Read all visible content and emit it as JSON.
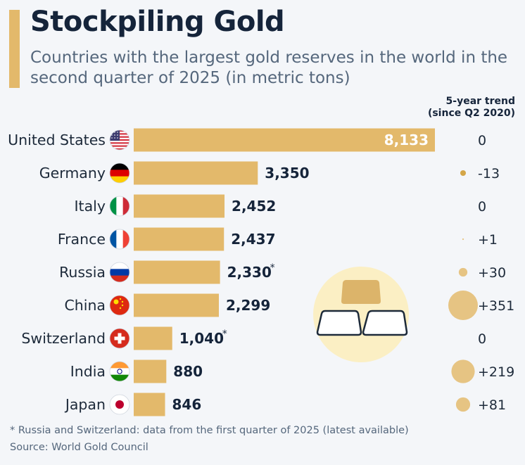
{
  "header": {
    "title": "Stockpiling Gold",
    "subtitle": "Countries with the largest gold reserves in the world in the second quarter of 2025 (in metric tons)",
    "trend_header_line1": "5-year trend",
    "trend_header_line2": "(since Q2 2020)"
  },
  "colors": {
    "bar": "#e3b96b",
    "accent": "#e3b96b",
    "trend_bubble": "#e6c483",
    "illustration_circle": "#fbefc4",
    "title": "#15243a"
  },
  "chart_data": {
    "type": "bar",
    "orientation": "horizontal",
    "title": "Stockpiling Gold",
    "subtitle": "Countries with the largest gold reserves in the world in the second quarter of 2025 (in metric tons)",
    "categories": [
      "United States",
      "Germany",
      "Italy",
      "France",
      "Russia",
      "China",
      "Switzerland",
      "India",
      "Japan"
    ],
    "flags": [
      "us-flag-icon",
      "germany-flag-icon",
      "italy-flag-icon",
      "france-flag-icon",
      "russia-flag-icon",
      "china-flag-icon",
      "switzerland-flag-icon",
      "india-flag-icon",
      "japan-flag-icon"
    ],
    "values": [
      8133,
      3350,
      2452,
      2437,
      2330,
      2299,
      1040,
      880,
      846
    ],
    "value_labels": [
      "8,133",
      "3,350",
      "2,452",
      "2,437",
      "2,330",
      "2,299",
      "1,040",
      "880",
      "846"
    ],
    "asterisk": [
      false,
      false,
      false,
      false,
      true,
      false,
      true,
      false,
      false
    ],
    "trend": {
      "header": "5-year trend (since Q2 2020)",
      "values": [
        0,
        -13,
        0,
        1,
        30,
        351,
        0,
        219,
        81
      ],
      "labels": [
        "0",
        "-13",
        "0",
        "+1",
        "+30",
        "+351",
        "0",
        "+219",
        "+81"
      ]
    },
    "legend": "none",
    "grid": false
  },
  "footer": {
    "footnote": "* Russia and Switzerland: data from the first quarter of 2025 (latest available)",
    "source": "Source: World Gold Council"
  }
}
